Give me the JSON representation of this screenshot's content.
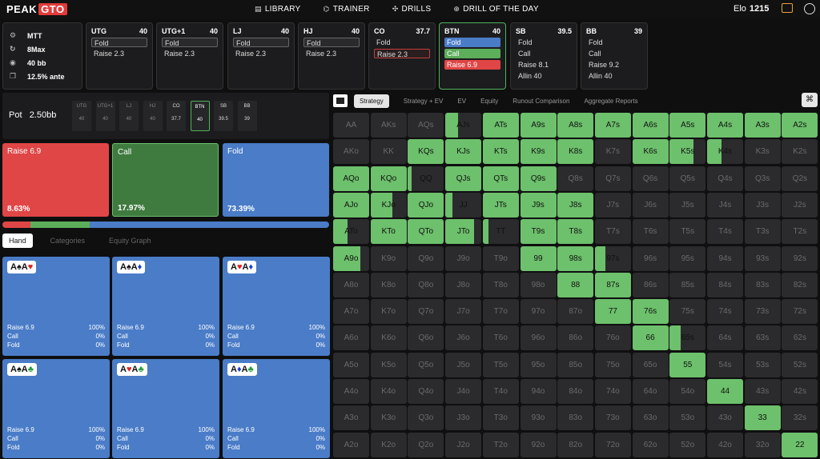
{
  "brand": {
    "peak": "PEAK",
    "gto": "GTO"
  },
  "nav": [
    {
      "icon": "library-icon",
      "glyph": "▤",
      "label": "LIBRARY"
    },
    {
      "icon": "trainer-icon",
      "glyph": "⌬",
      "label": "TRAINER"
    },
    {
      "icon": "drills-icon",
      "glyph": "✣",
      "label": "DRILLS"
    },
    {
      "icon": "drill-of-day-icon",
      "glyph": "⊕",
      "label": "DRILL OF THE DAY"
    }
  ],
  "elo": {
    "label": "Elo",
    "value": "1215"
  },
  "game_info": [
    {
      "icon": "settings-icon",
      "glyph": "⚙",
      "text": "MTT"
    },
    {
      "icon": "refresh-icon",
      "glyph": "↻",
      "text": "8Max"
    },
    {
      "icon": "camera-icon",
      "glyph": "◉",
      "text": "40 bb"
    },
    {
      "icon": "copy-icon",
      "glyph": "❐",
      "text": "12.5% ante"
    }
  ],
  "positions": [
    {
      "name": "UTG",
      "stack": "40",
      "actions": [
        {
          "t": "Fold",
          "s": "sel"
        },
        {
          "t": "Raise 2.3",
          "s": ""
        }
      ]
    },
    {
      "name": "UTG+1",
      "stack": "40",
      "actions": [
        {
          "t": "Fold",
          "s": "sel"
        },
        {
          "t": "Raise 2.3",
          "s": ""
        }
      ]
    },
    {
      "name": "LJ",
      "stack": "40",
      "actions": [
        {
          "t": "Fold",
          "s": "sel"
        },
        {
          "t": "Raise 2.3",
          "s": ""
        }
      ]
    },
    {
      "name": "HJ",
      "stack": "40",
      "actions": [
        {
          "t": "Fold",
          "s": "sel"
        },
        {
          "t": "Raise 2.3",
          "s": ""
        }
      ]
    },
    {
      "name": "CO",
      "stack": "37.7",
      "actions": [
        {
          "t": "Fold",
          "s": ""
        },
        {
          "t": "Raise 2.3",
          "s": "sel-red"
        }
      ]
    },
    {
      "name": "BTN",
      "stack": "40",
      "active": true,
      "actions": [
        {
          "t": "Fold",
          "s": "blue"
        },
        {
          "t": "Call",
          "s": "green"
        },
        {
          "t": "Raise 6.9",
          "s": "red"
        }
      ]
    },
    {
      "name": "SB",
      "stack": "39.5",
      "actions": [
        {
          "t": "Fold",
          "s": ""
        },
        {
          "t": "Call",
          "s": ""
        },
        {
          "t": "Raise 8.1",
          "s": ""
        },
        {
          "t": "Allin 40",
          "s": ""
        }
      ]
    },
    {
      "name": "BB",
      "stack": "39",
      "actions": [
        {
          "t": "Fold",
          "s": ""
        },
        {
          "t": "Call",
          "s": ""
        },
        {
          "t": "Raise 9.2",
          "s": ""
        },
        {
          "t": "Allin 40",
          "s": ""
        }
      ]
    }
  ],
  "pot": {
    "label": "Pot",
    "value": "2.50bb",
    "seats": [
      {
        "n": "UTG",
        "v": "40"
      },
      {
        "n": "UTG+1",
        "v": "40"
      },
      {
        "n": "LJ",
        "v": "40"
      },
      {
        "n": "HJ",
        "v": "40"
      },
      {
        "n": "CO",
        "v": "37.7",
        "hi": true
      },
      {
        "n": "BTN",
        "v": "40",
        "active": true
      },
      {
        "n": "SB",
        "v": "39.5",
        "hi": true
      },
      {
        "n": "BB",
        "v": "39",
        "hi": true
      }
    ]
  },
  "actions_summary": [
    {
      "label": "Raise 6.9",
      "pct": "8.63%",
      "color": "#e04646",
      "frac": 0.0863
    },
    {
      "label": "Call",
      "pct": "17.97%",
      "color": "#3f7a3f",
      "frac": 0.1797
    },
    {
      "label": "Fold",
      "pct": "73.39%",
      "color": "#4a7cc7",
      "frac": 0.7339
    }
  ],
  "left_tabs": [
    "Hand",
    "Categories",
    "Equity Graph"
  ],
  "hands": [
    {
      "cards": [
        {
          "r": "A",
          "s": "♠",
          "c": "k"
        },
        {
          "r": "A",
          "s": "♥",
          "c": "r"
        }
      ]
    },
    {
      "cards": [
        {
          "r": "A",
          "s": "♠",
          "c": "k"
        },
        {
          "r": "A",
          "s": "♦",
          "c": "b"
        }
      ]
    },
    {
      "cards": [
        {
          "r": "A",
          "s": "♥",
          "c": "r"
        },
        {
          "r": "A",
          "s": "♦",
          "c": "b"
        }
      ]
    },
    {
      "cards": [
        {
          "r": "A",
          "s": "♠",
          "c": "k"
        },
        {
          "r": "A",
          "s": "♣",
          "c": "g"
        }
      ]
    },
    {
      "cards": [
        {
          "r": "A",
          "s": "♥",
          "c": "r"
        },
        {
          "r": "A",
          "s": "♣",
          "c": "g"
        }
      ]
    },
    {
      "cards": [
        {
          "r": "A",
          "s": "♦",
          "c": "b"
        },
        {
          "r": "A",
          "s": "♣",
          "c": "g"
        }
      ]
    }
  ],
  "hand_freqs": [
    {
      "a": "Raise 6.9",
      "p": "100%"
    },
    {
      "a": "Call",
      "p": "0%"
    },
    {
      "a": "Fold",
      "p": "0%"
    }
  ],
  "right_tabs": [
    "Strategy",
    "Strategy + EV",
    "EV",
    "Equity",
    "Runout Comparison",
    "Aggregate Reports"
  ],
  "ranks": [
    "A",
    "K",
    "Q",
    "J",
    "T",
    "9",
    "8",
    "7",
    "6",
    "5",
    "4",
    "3",
    "2"
  ],
  "call_fraction_by_cell": {
    "AA": 0,
    "AKs": 0,
    "AQs": 0,
    "AJs": 0.35,
    "ATs": 1,
    "A9s": 1,
    "A8s": 1,
    "A7s": 1,
    "A6s": 1,
    "A5s": 1,
    "A4s": 1,
    "A3s": 1,
    "A2s": 1,
    "AKo": 0,
    "KK": 0,
    "KQs": 1,
    "KJs": 1,
    "KTs": 1,
    "K9s": 1,
    "K8s": 1,
    "K7s": 0,
    "K6s": 1,
    "K5s": 0.65,
    "K4s": 0.4,
    "AQo": 1,
    "KQo": 1,
    "QQ": 0.1,
    "QJs": 1,
    "QTs": 1,
    "Q9s": 1,
    "Q8s": 0,
    "AJo": 1,
    "KJo": 0.6,
    "QJo": 1,
    "JJ": 0.2,
    "JTs": 1,
    "J9s": 1,
    "J8s": 1,
    "ATo": 0.4,
    "KTo": 1,
    "QTo": 1,
    "JTo": 0.8,
    "TT": 0.15,
    "T9s": 1,
    "T8s": 1,
    "A9o": 0.75,
    "99": 1,
    "98s": 1,
    "97s": 0.3,
    "88": 1,
    "87s": 1,
    "77": 1,
    "76s": 1,
    "66": 1,
    "65s": 0.3,
    "55": 1,
    "44": 1,
    "33": 1,
    "22": 1
  }
}
